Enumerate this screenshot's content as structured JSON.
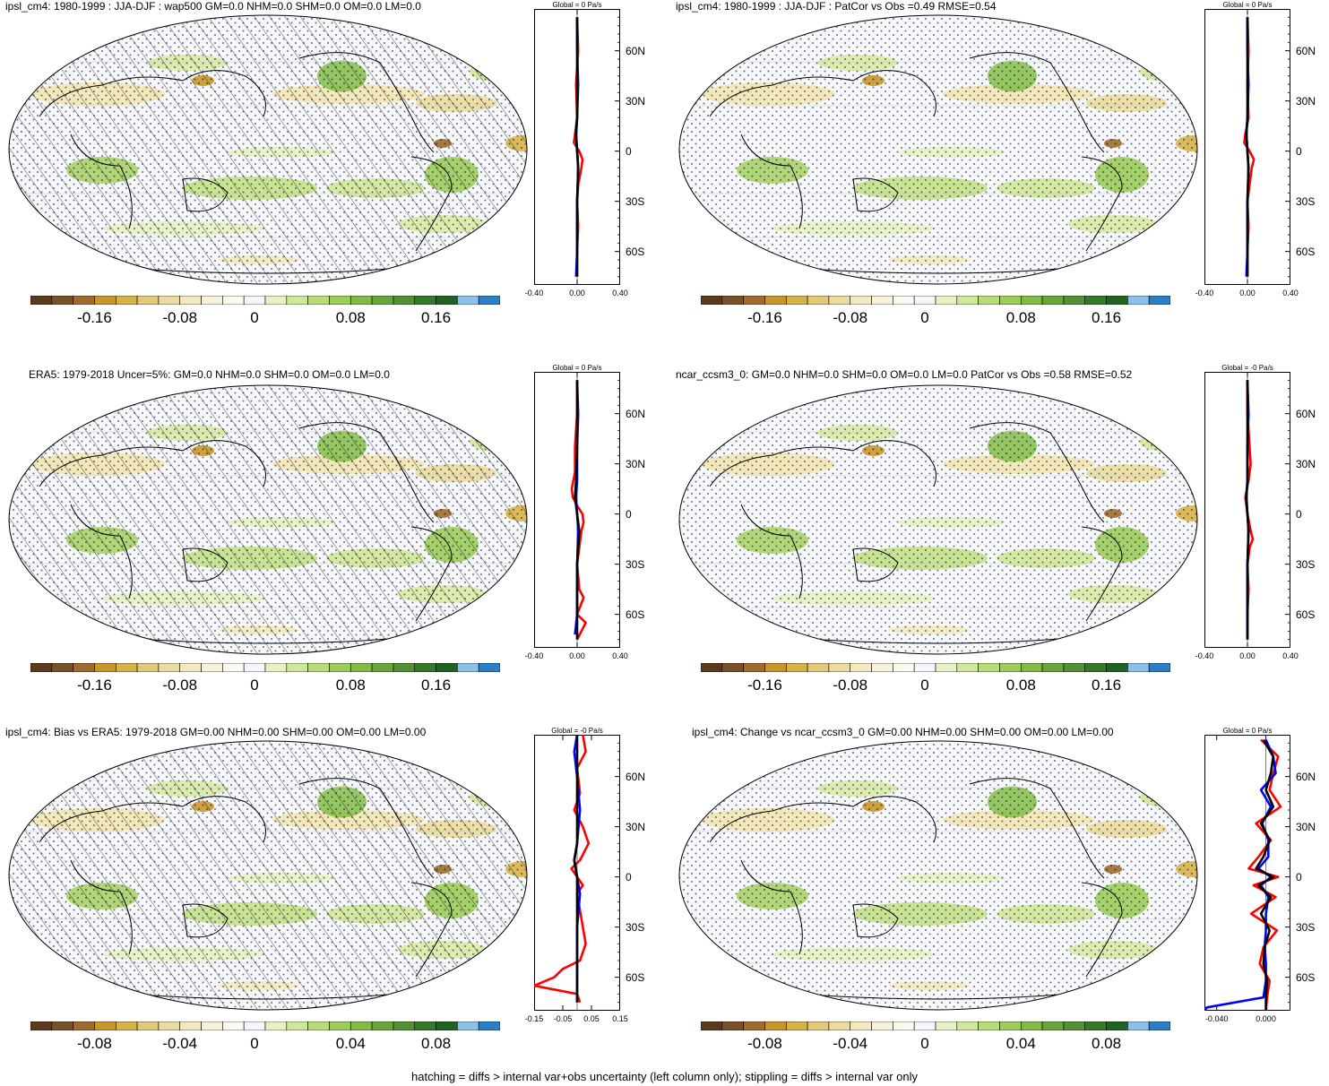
{
  "chart_data": [
    {
      "type": "heatmap",
      "title": "ipsl_cm4: 1980-1999 : JJA-DJF : wap500 GM=0.0 NHM=0.0 SHM=0.0 OM=0.0 LM=0.0",
      "hatched": true,
      "colorbar": {
        "ticks": [
          "-0.16",
          "-0.08",
          "0",
          "0.08",
          "0.16"
        ]
      },
      "zonal_mean": {
        "title": "Global = 0 Pa/s",
        "lat_labels": [
          "60N",
          "30N",
          "0",
          "30S",
          "60S"
        ],
        "xticks": [
          "-0.40",
          "0.00",
          "0.40"
        ],
        "xlim": [
          -0.4,
          0.4
        ],
        "series": [
          {
            "color": "#ff0000",
            "lat": [
              80,
              60,
              40,
              20,
              10,
              5,
              0,
              -5,
              -10,
              -20,
              -30,
              -45,
              -60,
              -75
            ],
            "values": [
              0.0,
              0.01,
              -0.01,
              0.0,
              -0.02,
              -0.03,
              0.02,
              0.05,
              0.04,
              0.01,
              0.0,
              0.01,
              0.0,
              0.0
            ]
          },
          {
            "color": "#0000ff",
            "lat": [
              80,
              60,
              40,
              20,
              10,
              0,
              -10,
              -30,
              -60,
              -75
            ],
            "values": [
              0.0,
              0.0,
              0.01,
              0.0,
              -0.01,
              0.0,
              0.01,
              0.0,
              0.0,
              -0.01
            ]
          },
          {
            "color": "#000000",
            "lat": [
              80,
              60,
              40,
              20,
              10,
              0,
              -10,
              -30,
              -60,
              -75
            ],
            "values": [
              0.0,
              0.0,
              0.0,
              0.0,
              -0.01,
              0.0,
              0.01,
              0.0,
              0.0,
              0.0
            ]
          }
        ]
      }
    },
    {
      "type": "heatmap",
      "title": "ipsl_cm4: 1980-1999 : JJA-DJF : PatCor vs Obs =0.49 RMSE=0.54",
      "hatched": false,
      "colorbar": {
        "ticks": [
          "-0.16",
          "-0.08",
          "0",
          "0.08",
          "0.16"
        ]
      },
      "zonal_mean": {
        "title": "Global = 0 Pa/s",
        "lat_labels": [
          "60N",
          "30N",
          "0",
          "30S",
          "60S"
        ],
        "xticks": [
          "-0.40",
          "0.00",
          "0.40"
        ],
        "xlim": [
          -0.4,
          0.4
        ],
        "series": [
          {
            "color": "#ff0000",
            "lat": [
              80,
              60,
              40,
              20,
              10,
              5,
              0,
              -5,
              -10,
              -20,
              -30,
              -45,
              -60,
              -75
            ],
            "values": [
              0.0,
              0.01,
              0.0,
              0.01,
              -0.02,
              -0.03,
              0.02,
              0.06,
              0.04,
              0.02,
              0.0,
              0.01,
              0.0,
              0.0
            ]
          },
          {
            "color": "#0000ff",
            "lat": [
              80,
              60,
              40,
              20,
              10,
              0,
              -10,
              -30,
              -60,
              -75
            ],
            "values": [
              0.0,
              0.0,
              0.01,
              0.0,
              -0.01,
              0.0,
              0.01,
              0.0,
              0.0,
              -0.01
            ]
          },
          {
            "color": "#000000",
            "lat": [
              80,
              60,
              40,
              20,
              10,
              0,
              -10,
              -30,
              -60,
              -75
            ],
            "values": [
              0.0,
              0.0,
              0.0,
              0.0,
              -0.01,
              0.0,
              0.01,
              0.0,
              0.0,
              0.0
            ]
          }
        ]
      }
    },
    {
      "type": "heatmap",
      "title": "ERA5: 1979-2018 Uncer=5%: GM=0.0 NHM=0.0 SHM=0.0 OM=0.0 LM=0.0",
      "hatched": true,
      "colorbar": {
        "ticks": [
          "-0.16",
          "-0.08",
          "0",
          "0.08",
          "0.16"
        ]
      },
      "zonal_mean": {
        "title": "Global = 0 Pa/s",
        "lat_labels": [
          "60N",
          "30N",
          "0",
          "30S",
          "60S"
        ],
        "xticks": [
          "-0.40",
          "0.00",
          "0.40"
        ],
        "xlim": [
          -0.4,
          0.4
        ],
        "series": [
          {
            "color": "#ff0000",
            "lat": [
              80,
              60,
              40,
              25,
              15,
              10,
              5,
              0,
              -5,
              -10,
              -20,
              -30,
              -45,
              -50,
              -60,
              -65,
              -75
            ],
            "values": [
              0.0,
              0.0,
              -0.02,
              -0.02,
              -0.05,
              -0.04,
              0.0,
              0.05,
              0.06,
              0.04,
              0.02,
              0.0,
              0.02,
              0.06,
              0.0,
              0.08,
              0.0
            ]
          },
          {
            "color": "#0000ff",
            "lat": [
              80,
              60,
              40,
              20,
              10,
              0,
              -10,
              -30,
              -60,
              -72
            ],
            "values": [
              0.0,
              0.01,
              0.0,
              0.0,
              -0.01,
              0.0,
              0.01,
              0.0,
              0.0,
              -0.02
            ]
          },
          {
            "color": "#000000",
            "lat": [
              80,
              60,
              40,
              20,
              10,
              0,
              -10,
              -30,
              -60,
              -75
            ],
            "values": [
              0.0,
              0.0,
              0.0,
              -0.01,
              -0.02,
              0.0,
              0.02,
              0.0,
              0.0,
              0.0
            ]
          }
        ]
      }
    },
    {
      "type": "heatmap",
      "title": "ncar_ccsm3_0: GM=0.0 NHM=0.0 SHM=0.0 OM=0.0 LM=0.0 PatCor vs Obs =0.58 RMSE=0.52",
      "hatched": false,
      "colorbar": {
        "ticks": [
          "-0.16",
          "-0.08",
          "0",
          "0.08",
          "0.16"
        ]
      },
      "zonal_mean": {
        "title": "Global = -0 Pa/s",
        "lat_labels": [
          "60N",
          "30N",
          "0",
          "30S",
          "60S"
        ],
        "xticks": [
          "-0.40",
          "0.00",
          "0.40"
        ],
        "xlim": [
          -0.4,
          0.4
        ],
        "series": [
          {
            "color": "#ff0000",
            "lat": [
              80,
              60,
              40,
              30,
              20,
              10,
              0,
              -10,
              -15,
              -20,
              -30,
              -45,
              -60,
              -75
            ],
            "values": [
              0.0,
              0.0,
              0.02,
              0.03,
              0.01,
              -0.02,
              0.0,
              0.03,
              0.05,
              0.02,
              0.0,
              0.01,
              0.0,
              0.0
            ]
          },
          {
            "color": "#0000ff",
            "lat": [
              80,
              60,
              40,
              20,
              10,
              0,
              -10,
              -30,
              -60,
              -75
            ],
            "values": [
              0.0,
              0.01,
              0.0,
              0.0,
              -0.01,
              0.0,
              0.01,
              0.0,
              0.0,
              0.0
            ]
          },
          {
            "color": "#000000",
            "lat": [
              80,
              60,
              40,
              20,
              10,
              0,
              -10,
              -30,
              -60,
              -75
            ],
            "values": [
              0.0,
              0.0,
              0.0,
              0.0,
              -0.01,
              0.0,
              0.01,
              0.0,
              0.0,
              0.0
            ]
          }
        ]
      }
    },
    {
      "type": "heatmap",
      "title": "ipsl_cm4: Bias vs ERA5: 1979-2018 GM=0.00 NHM=0.00 SHM=0.00 OM=0.00 LM=0.00",
      "hatched": true,
      "colorbar": {
        "ticks": [
          "-0.08",
          "-0.04",
          "0",
          "0.04",
          "0.08"
        ]
      },
      "zonal_mean": {
        "title": "Global = -0 Pa/s",
        "lat_labels": [
          "60N",
          "30N",
          "0",
          "30S",
          "60S"
        ],
        "xticks": [
          "-0.15",
          "-0.05",
          "0.05",
          "0.15"
        ],
        "xlim": [
          -0.15,
          0.15
        ],
        "series": [
          {
            "color": "#ff0000",
            "lat": [
              85,
              75,
              65,
              50,
              40,
              30,
              20,
              10,
              5,
              0,
              -5,
              -10,
              -20,
              -30,
              -40,
              -50,
              -55,
              -60,
              -65,
              -70,
              -75
            ],
            "values": [
              0.02,
              0.03,
              0.0,
              0.01,
              -0.01,
              0.02,
              0.04,
              0.01,
              -0.02,
              0.0,
              0.02,
              0.0,
              0.01,
              0.02,
              0.03,
              0.01,
              -0.05,
              -0.08,
              -0.15,
              0.0,
              0.01
            ]
          },
          {
            "color": "#0000ff",
            "lat": [
              85,
              75,
              60,
              40,
              20,
              10,
              0,
              -10,
              -30,
              -60,
              -75
            ],
            "values": [
              0.0,
              -0.01,
              0.0,
              0.01,
              0.0,
              -0.01,
              0.0,
              0.01,
              0.0,
              0.0,
              0.0
            ]
          },
          {
            "color": "#000000",
            "lat": [
              85,
              75,
              60,
              40,
              20,
              10,
              0,
              -10,
              -30,
              -60,
              -75
            ],
            "values": [
              0.0,
              0.0,
              0.0,
              0.0,
              0.0,
              -0.01,
              0.0,
              0.0,
              0.0,
              0.0,
              0.0
            ]
          }
        ]
      }
    },
    {
      "type": "heatmap",
      "title": "ipsl_cm4: Change vs ncar_ccsm3_0 GM=0.00 NHM=0.00 SHM=0.00 OM=0.00 LM=0.00",
      "hatched": false,
      "colorbar": {
        "ticks": [
          "-0.08",
          "-0.04",
          "0",
          "0.04",
          "0.08"
        ]
      },
      "zonal_mean": {
        "title": "Global = 0 Pa/s",
        "lat_labels": [
          "60N",
          "30N",
          "0",
          "30S",
          "60S"
        ],
        "xticks": [
          "-0.040",
          "0.000"
        ],
        "xlim": [
          -0.05,
          0.02
        ],
        "series": [
          {
            "color": "#ff0000",
            "lat": [
              82,
              72,
              62,
              52,
              42,
              32,
              22,
              12,
              5,
              0,
              -5,
              -12,
              -22,
              -32,
              -42,
              -52,
              -62,
              -72,
              -80
            ],
            "values": [
              -0.004,
              0.01,
              0.006,
              0.003,
              0.012,
              -0.008,
              0.004,
              -0.006,
              -0.014,
              0.01,
              -0.01,
              0.008,
              -0.012,
              0.009,
              -0.002,
              -0.005,
              0.003,
              0.001,
              0.0
            ]
          },
          {
            "color": "#0000ff",
            "lat": [
              82,
              72,
              62,
              52,
              42,
              32,
              22,
              12,
              5,
              0,
              -5,
              -12,
              -22,
              -32,
              -42,
              -52,
              -62,
              -72,
              -78,
              -80
            ],
            "values": [
              0.0,
              0.006,
              0.008,
              -0.004,
              0.004,
              -0.003,
              0.002,
              0.002,
              -0.006,
              0.004,
              -0.004,
              0.002,
              0.0,
              0.0,
              -0.001,
              0.0,
              0.0,
              -0.002,
              -0.048,
              -0.05
            ]
          },
          {
            "color": "#000000",
            "lat": [
              82,
              72,
              62,
              52,
              42,
              32,
              22,
              12,
              5,
              0,
              -5,
              -12,
              -22,
              -32,
              -42,
              -52,
              -62,
              -72,
              -80
            ],
            "values": [
              -0.002,
              0.006,
              0.004,
              0.0,
              0.006,
              -0.004,
              0.003,
              -0.002,
              -0.008,
              0.006,
              -0.006,
              0.004,
              -0.004,
              0.003,
              -0.001,
              -0.002,
              0.001,
              0.0,
              0.0
            ]
          }
        ]
      }
    }
  ],
  "colorbar_colors": [
    "#5c3a1e",
    "#7a5229",
    "#a06a2e",
    "#c8962c",
    "#d6b24a",
    "#e2c97a",
    "#ecdb9e",
    "#f3e9bf",
    "#f7f1d8",
    "#fbfaf0",
    "#f5f6fb",
    "#e6f2c4",
    "#cfe79a",
    "#b7dc78",
    "#9bcc5c",
    "#80bb46",
    "#68a83a",
    "#4f9233",
    "#357a2a",
    "#1f6420",
    "#8cc2ea",
    "#2a7fc6"
  ],
  "footer": "hatching = diffs > internal var+obs uncertainty (left column only); stippling = diffs > internal var only"
}
